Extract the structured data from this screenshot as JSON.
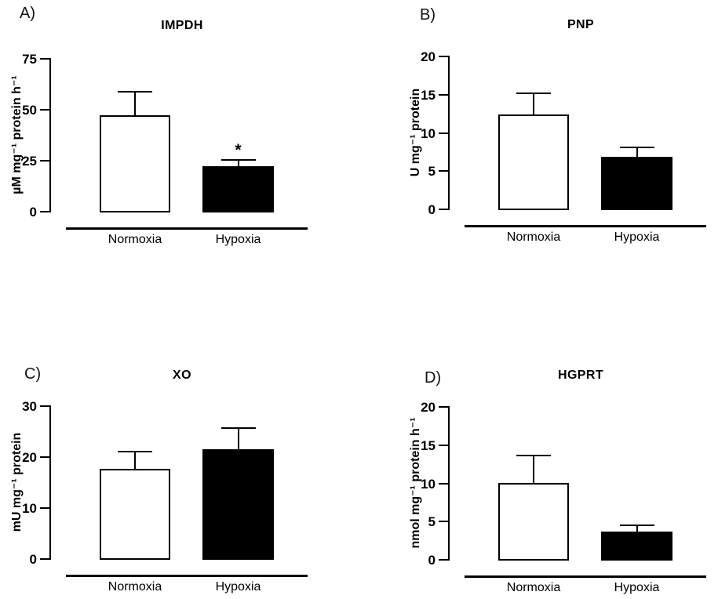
{
  "figure": {
    "background": "#ffffff",
    "line_color": "#000000",
    "normoxia_fill": "#ffffff",
    "hypoxia_fill": "#000000",
    "significance_marker": "*"
  },
  "chart_data": [
    {
      "type": "bar",
      "panel_label": "A)",
      "title": "IMPDH",
      "ylabel": "µM mg⁻¹ protein h⁻¹",
      "ylim": [
        0,
        75
      ],
      "yticks": [
        0,
        25,
        50,
        75
      ],
      "categories": [
        "Normoxia",
        "Hypoxia"
      ],
      "values": [
        47,
        22
      ],
      "errors_sem": [
        11.5,
        3
      ],
      "bar_colors": [
        "#ffffff",
        "#000000"
      ],
      "significance": [
        "",
        "*"
      ],
      "legend": "none",
      "grid": false
    },
    {
      "type": "bar",
      "panel_label": "B)",
      "title": "PNP",
      "ylabel": "U mg⁻¹ protein",
      "ylim": [
        0,
        20
      ],
      "yticks": [
        0,
        5,
        10,
        15,
        20
      ],
      "categories": [
        "Normoxia",
        "Hypoxia"
      ],
      "values": [
        12.3,
        6.8
      ],
      "errors_sem": [
        2.8,
        1.2
      ],
      "bar_colors": [
        "#ffffff",
        "#000000"
      ],
      "significance": [
        "",
        ""
      ],
      "legend": "none",
      "grid": false
    },
    {
      "type": "bar",
      "panel_label": "C)",
      "title": "XO",
      "ylabel": "mU mg⁻¹ protein",
      "ylim": [
        0,
        30
      ],
      "yticks": [
        0,
        10,
        20,
        30
      ],
      "categories": [
        "Normoxia",
        "Hypoxia"
      ],
      "values": [
        17.6,
        21.4
      ],
      "errors_sem": [
        3.3,
        4.2
      ],
      "bar_colors": [
        "#ffffff",
        "#000000"
      ],
      "significance": [
        "",
        ""
      ],
      "legend": "none",
      "grid": false
    },
    {
      "type": "bar",
      "panel_label": "D)",
      "title": "HGPRT",
      "ylabel": "nmol mg⁻¹ protein h⁻¹",
      "ylim": [
        0,
        20
      ],
      "yticks": [
        0,
        5,
        10,
        15,
        20
      ],
      "categories": [
        "Normoxia",
        "Hypoxia"
      ],
      "values": [
        9.9,
        3.6
      ],
      "errors_sem": [
        3.6,
        0.8
      ],
      "bar_colors": [
        "#ffffff",
        "#000000"
      ],
      "significance": [
        "",
        ""
      ],
      "legend": "none",
      "grid": false
    }
  ]
}
